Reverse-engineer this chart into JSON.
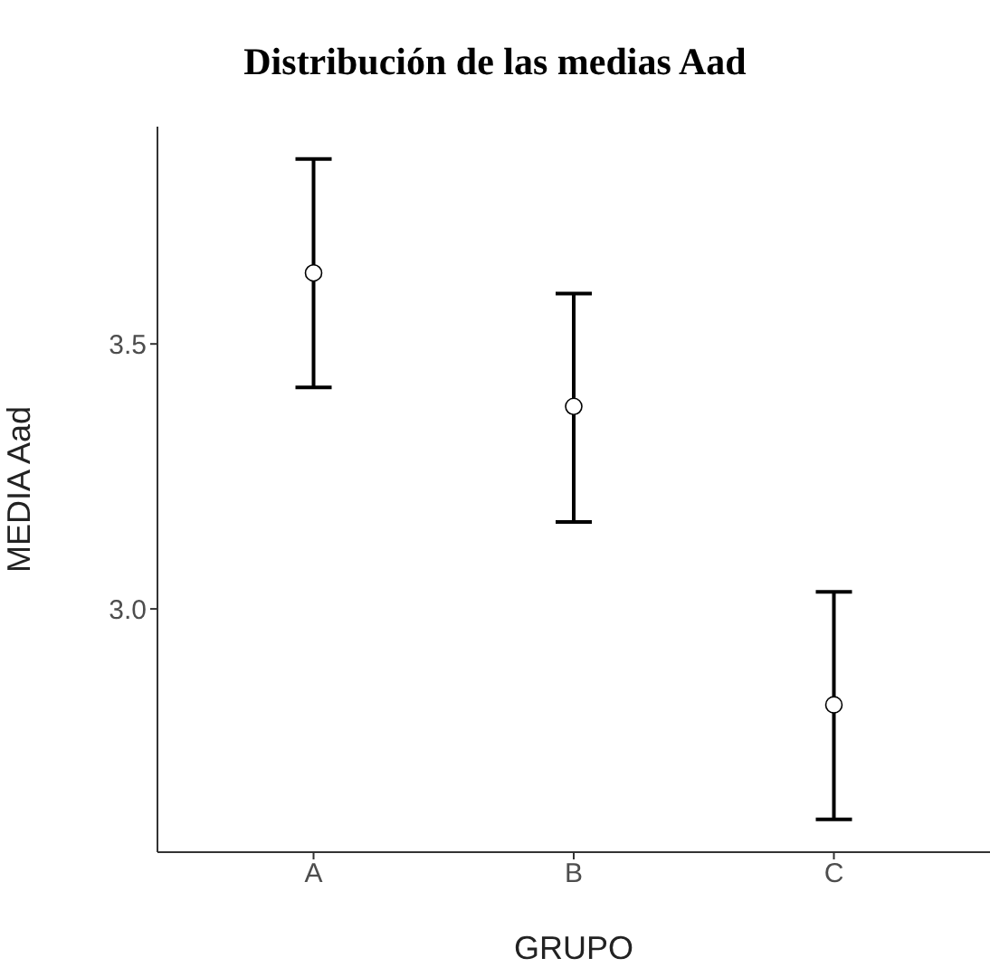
{
  "chart_data": {
    "type": "scatter",
    "title": "Distribución de las medias Aad",
    "xlabel": "GRUPO",
    "ylabel": "MEDIA Aad",
    "categories": [
      "A",
      "B",
      "C"
    ],
    "series": [
      {
        "color": "#000000",
        "values": [
          3.634,
          3.382,
          2.819
        ],
        "errors": [
          [
            3.418,
            3.849
          ],
          [
            3.164,
            3.595
          ],
          [
            2.603,
            3.032
          ]
        ]
      }
    ],
    "marker": "circle",
    "ylim": [
      2.541,
      3.91
    ],
    "yticks": [
      {
        "value": 3.0,
        "label": "3.0"
      },
      {
        "value": 3.5,
        "label": "3.5"
      }
    ]
  }
}
